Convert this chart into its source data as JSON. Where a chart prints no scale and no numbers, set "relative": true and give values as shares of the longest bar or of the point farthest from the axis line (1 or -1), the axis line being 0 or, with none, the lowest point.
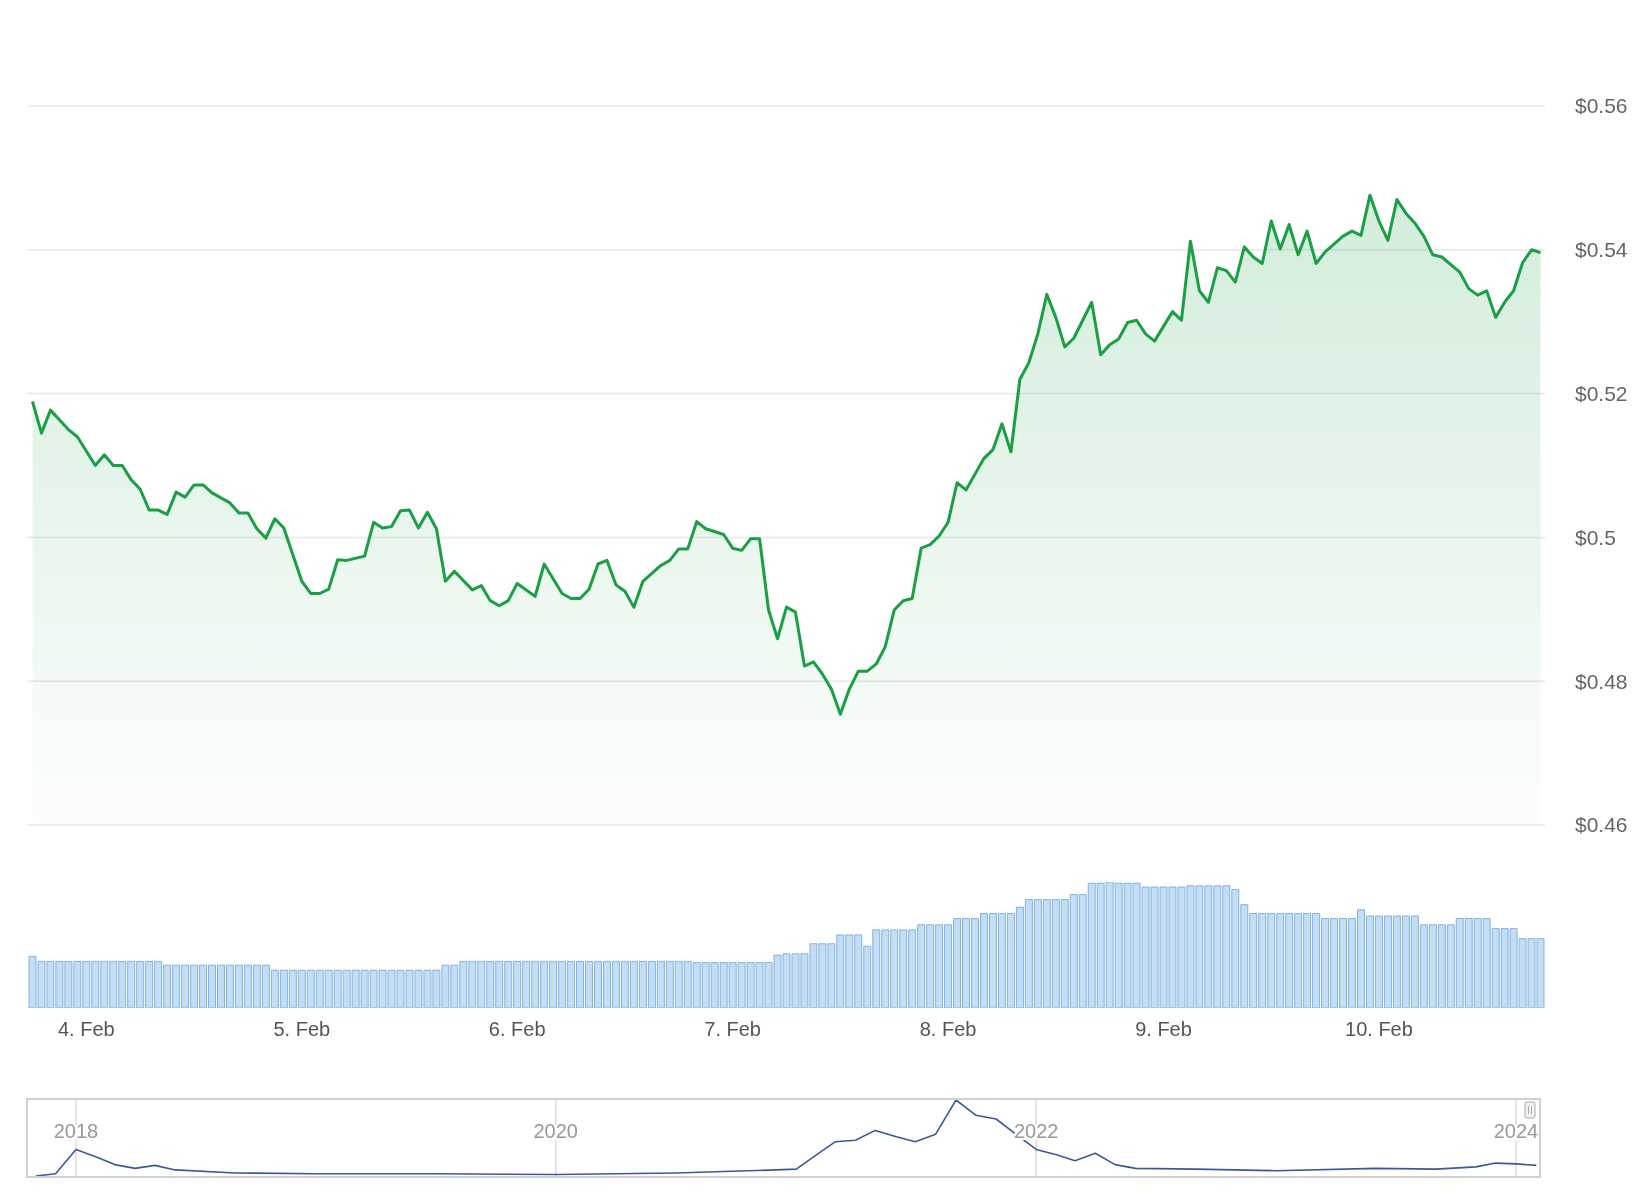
{
  "chart_data": [
    {
      "type": "area",
      "color": "#1a9f45",
      "marker": "none",
      "grid": "y",
      "tick_labels": "y",
      "xlim": [
        "--02-03T17:30",
        "--02-10T18:30"
      ],
      "ylim": [
        0.46,
        0.56
      ],
      "yticks": [
        {
          "value": 0.46,
          "label": "$0.46"
        },
        {
          "value": 0.48,
          "label": "$0.48"
        },
        {
          "value": 0.5,
          "label": "$0.5"
        },
        {
          "value": 0.52,
          "label": "$0.52"
        },
        {
          "value": 0.54,
          "label": "$0.54"
        },
        {
          "value": 0.56,
          "label": "$0.56"
        }
      ],
      "x": [
        "--02-03T18:00",
        "--02-03T19:00",
        "--02-03T20:00",
        "--02-03T22:00",
        "--02-03T23:00",
        "--02-04T01:00",
        "--02-04T02:00",
        "--02-04T03:00",
        "--02-04T04:00",
        "--02-04T05:00",
        "--02-04T06:00",
        "--02-04T07:00",
        "--02-04T08:00",
        "--02-04T09:00",
        "--02-04T10:00",
        "--02-04T11:00",
        "--02-04T12:00",
        "--02-04T13:00",
        "--02-04T14:00",
        "--02-04T16:00",
        "--02-04T17:00",
        "--02-04T18:00",
        "--02-04T19:00",
        "--02-04T20:00",
        "--02-04T21:00",
        "--02-04T22:00",
        "--02-05T00:00",
        "--02-05T01:00",
        "--02-05T02:00",
        "--02-05T03:00",
        "--02-05T04:00",
        "--02-05T05:00",
        "--02-05T07:00",
        "--02-05T08:00",
        "--02-05T09:00",
        "--02-05T10:00",
        "--02-05T11:00",
        "--02-05T12:00",
        "--02-05T13:00",
        "--02-05T14:00",
        "--02-05T15:00",
        "--02-05T16:00",
        "--02-05T17:00",
        "--02-05T19:00",
        "--02-05T20:00",
        "--02-05T21:00",
        "--02-05T22:00",
        "--02-05T23:00",
        "--02-06T00:00",
        "--02-06T02:00",
        "--02-06T03:00",
        "--02-06T05:00",
        "--02-06T06:00",
        "--02-06T07:00",
        "--02-06T08:00",
        "--02-06T09:00",
        "--02-06T10:00",
        "--02-06T11:00",
        "--02-06T12:00",
        "--02-06T13:00",
        "--02-06T14:00",
        "--02-06T15:00",
        "--02-06T16:00",
        "--02-06T17:00",
        "--02-06T18:00",
        "--02-06T19:00",
        "--02-06T20:00",
        "--02-06T21:00",
        "--02-06T23:00",
        "--02-07T00:00",
        "--02-07T01:00",
        "--02-07T02:00",
        "--02-07T03:00",
        "--02-07T04:00",
        "--02-07T05:00",
        "--02-07T06:00",
        "--02-07T07:00",
        "--02-07T08:00",
        "--02-07T09:00",
        "--02-07T10:00",
        "--02-07T11:00",
        "--02-07T12:00",
        "--02-07T13:00",
        "--02-07T14:00",
        "--02-07T15:00",
        "--02-07T16:00",
        "--02-07T17:00",
        "--02-07T18:00",
        "--02-07T19:00",
        "--02-07T20:00",
        "--02-07T21:00",
        "--02-07T22:00",
        "--02-07T23:00",
        "--02-08T00:00",
        "--02-08T01:00",
        "--02-08T02:00",
        "--02-08T03:00",
        "--02-08T04:00",
        "--02-08T05:00",
        "--02-08T06:00",
        "--02-08T07:00",
        "--02-08T08:00",
        "--02-08T09:00",
        "--02-08T10:00",
        "--02-08T11:00",
        "--02-08T12:00",
        "--02-08T13:00",
        "--02-08T14:00",
        "--02-08T15:00",
        "--02-08T16:00",
        "--02-08T17:00",
        "--02-08T18:00",
        "--02-08T19:00",
        "--02-08T20:00",
        "--02-08T21:00",
        "--02-08T22:00",
        "--02-08T23:00",
        "--02-09T01:00",
        "--02-09T02:00",
        "--02-09T03:00",
        "--02-09T04:00",
        "--02-09T05:00",
        "--02-09T06:00",
        "--02-09T07:00",
        "--02-09T08:00",
        "--02-09T09:00",
        "--02-09T10:00",
        "--02-09T11:00",
        "--02-09T12:00",
        "--02-09T13:00",
        "--02-09T14:00",
        "--02-09T15:00",
        "--02-09T16:00",
        "--02-09T17:00",
        "--02-09T18:00",
        "--02-09T20:00",
        "--02-09T21:00",
        "--02-09T22:00",
        "--02-09T23:00",
        "--02-10T00:00",
        "--02-10T01:00",
        "--02-10T02:00",
        "--02-10T03:00",
        "--02-10T04:00",
        "--02-10T05:00",
        "--02-10T06:00",
        "--02-10T07:00",
        "--02-10T09:00",
        "--02-10T10:00",
        "--02-10T11:00",
        "--02-10T12:00",
        "--02-10T13:00",
        "--02-10T14:00",
        "--02-10T15:00",
        "--02-10T16:00",
        "--02-10T17:00",
        "--02-10T18:00"
      ],
      "values": [
        0.5189,
        0.5145,
        0.5177,
        0.515,
        0.514,
        0.51,
        0.5115,
        0.51,
        0.51,
        0.508,
        0.5067,
        0.5038,
        0.5038,
        0.5032,
        0.5063,
        0.5056,
        0.5073,
        0.5073,
        0.5062,
        0.5048,
        0.5034,
        0.5034,
        0.5012,
        0.4999,
        0.5026,
        0.5013,
        0.4939,
        0.4922,
        0.4922,
        0.4928,
        0.4969,
        0.4968,
        0.4974,
        0.5021,
        0.5013,
        0.5015,
        0.5037,
        0.5038,
        0.5013,
        0.5035,
        0.5012,
        0.4939,
        0.4953,
        0.4927,
        0.4933,
        0.4912,
        0.4905,
        0.4912,
        0.4936,
        0.4918,
        0.4963,
        0.4922,
        0.4915,
        0.4915,
        0.4928,
        0.4963,
        0.4968,
        0.4934,
        0.4925,
        0.4903,
        0.4939,
        0.495,
        0.4961,
        0.4968,
        0.4984,
        0.4984,
        0.5022,
        0.5012,
        0.5004,
        0.4985,
        0.4982,
        0.4998,
        0.4998,
        0.4899,
        0.4859,
        0.4903,
        0.4896,
        0.4821,
        0.4827,
        0.481,
        0.4789,
        0.4754,
        0.4789,
        0.4814,
        0.4814,
        0.4824,
        0.4848,
        0.4899,
        0.4912,
        0.4915,
        0.4985,
        0.499,
        0.5002,
        0.5021,
        0.5076,
        0.5066,
        0.5088,
        0.511,
        0.5122,
        0.5158,
        0.5119,
        0.522,
        0.5243,
        0.5283,
        0.5338,
        0.5306,
        0.5265,
        0.5277,
        0.5302,
        0.5327,
        0.5254,
        0.5268,
        0.5276,
        0.5299,
        0.5302,
        0.5283,
        0.5273,
        0.5314,
        0.5302,
        0.5412,
        0.5343,
        0.5327,
        0.5375,
        0.5371,
        0.5355,
        0.5404,
        0.539,
        0.5381,
        0.544,
        0.5401,
        0.5435,
        0.5393,
        0.5426,
        0.5381,
        0.5397,
        0.5419,
        0.5426,
        0.542,
        0.5476,
        0.544,
        0.5413,
        0.547,
        0.5451,
        0.5437,
        0.5419,
        0.5393,
        0.539,
        0.5369,
        0.5346,
        0.5337,
        0.5343,
        0.5306,
        0.5327,
        0.5343,
        0.5382,
        0.54,
        0.5396
      ]
    },
    {
      "type": "bar",
      "color": "#7fb3e3",
      "relative": true,
      "xlim": [
        "--02-03T17:30",
        "--02-10T18:30"
      ],
      "xticks": [
        {
          "value": "--02-04",
          "label": "4. Feb"
        },
        {
          "value": "--02-05",
          "label": "5. Feb"
        },
        {
          "value": "--02-06",
          "label": "6. Feb"
        },
        {
          "value": "--02-07",
          "label": "7. Feb"
        },
        {
          "value": "--02-08",
          "label": "8. Feb"
        },
        {
          "value": "--02-09",
          "label": "9. Feb"
        },
        {
          "value": "--02-10",
          "label": "10. Feb"
        }
      ],
      "x": [
        "--02-03T18:00",
        "--02-03T19:00",
        "--02-03T20:00",
        "--02-03T21:00",
        "--02-03T22:00",
        "--02-03T23:00",
        "--02-04T00:00",
        "--02-04T01:00",
        "--02-04T02:00",
        "--02-04T03:00",
        "--02-04T04:00",
        "--02-04T05:00",
        "--02-04T06:00",
        "--02-04T07:00",
        "--02-04T08:00",
        "--02-04T09:00",
        "--02-04T10:00",
        "--02-04T11:00",
        "--02-04T12:00",
        "--02-04T13:00",
        "--02-04T14:00",
        "--02-04T15:00",
        "--02-04T16:00",
        "--02-04T17:00",
        "--02-04T18:00",
        "--02-04T19:00",
        "--02-04T20:00",
        "--02-04T21:00",
        "--02-04T22:00",
        "--02-04T23:00",
        "--02-05T00:00",
        "--02-05T01:00",
        "--02-05T02:00",
        "--02-05T03:00",
        "--02-05T04:00",
        "--02-05T05:00",
        "--02-05T06:00",
        "--02-05T07:00",
        "--02-05T08:00",
        "--02-05T09:00",
        "--02-05T10:00",
        "--02-05T11:00",
        "--02-05T12:00",
        "--02-05T13:00",
        "--02-05T14:00",
        "--02-05T15:00",
        "--02-05T16:00",
        "--02-05T17:00",
        "--02-05T18:00",
        "--02-05T19:00",
        "--02-05T20:00",
        "--02-05T21:00",
        "--02-05T22:00",
        "--02-05T23:00",
        "--02-06T00:00",
        "--02-06T01:00",
        "--02-06T02:00",
        "--02-06T03:00",
        "--02-06T04:00",
        "--02-06T05:00",
        "--02-06T06:00",
        "--02-06T07:00",
        "--02-06T08:00",
        "--02-06T09:00",
        "--02-06T10:00",
        "--02-06T11:00",
        "--02-06T12:00",
        "--02-06T13:00",
        "--02-06T14:00",
        "--02-06T15:00",
        "--02-06T16:00",
        "--02-06T17:00",
        "--02-06T18:00",
        "--02-06T19:00",
        "--02-06T20:00",
        "--02-06T21:00",
        "--02-06T22:00",
        "--02-06T23:00",
        "--02-07T00:00",
        "--02-07T01:00",
        "--02-07T02:00",
        "--02-07T03:00",
        "--02-07T04:00",
        "--02-07T05:00",
        "--02-07T06:00",
        "--02-07T07:00",
        "--02-07T08:00",
        "--02-07T09:00",
        "--02-07T10:00",
        "--02-07T11:00",
        "--02-07T12:00",
        "--02-07T13:00",
        "--02-07T14:00",
        "--02-07T15:00",
        "--02-07T16:00",
        "--02-07T17:00",
        "--02-07T18:00",
        "--02-07T19:00",
        "--02-07T20:00",
        "--02-07T21:00",
        "--02-07T22:00",
        "--02-07T23:00",
        "--02-08T00:00",
        "--02-08T01:00",
        "--02-08T02:00",
        "--02-08T03:00",
        "--02-08T04:00",
        "--02-08T05:00",
        "--02-08T06:00",
        "--02-08T07:00",
        "--02-08T08:00",
        "--02-08T09:00",
        "--02-08T10:00",
        "--02-08T11:00",
        "--02-08T12:00",
        "--02-08T13:00",
        "--02-08T14:00",
        "--02-08T15:00",
        "--02-08T16:00",
        "--02-08T17:00",
        "--02-08T18:00",
        "--02-08T19:00",
        "--02-08T20:00",
        "--02-08T21:00",
        "--02-08T22:00",
        "--02-08T23:00",
        "--02-09T00:00",
        "--02-09T01:00",
        "--02-09T02:00",
        "--02-09T03:00",
        "--02-09T04:00",
        "--02-09T05:00",
        "--02-09T06:00",
        "--02-09T07:00",
        "--02-09T08:00",
        "--02-09T09:00",
        "--02-09T10:00",
        "--02-09T11:00",
        "--02-09T12:00",
        "--02-09T13:00",
        "--02-09T14:00",
        "--02-09T15:00",
        "--02-09T16:00",
        "--02-09T17:00",
        "--02-09T18:00",
        "--02-09T19:00",
        "--02-09T20:00",
        "--02-09T21:00",
        "--02-09T22:00",
        "--02-09T23:00",
        "--02-10T00:00",
        "--02-10T01:00",
        "--02-10T02:00",
        "--02-10T03:00",
        "--02-10T04:00",
        "--02-10T05:00",
        "--02-10T06:00",
        "--02-10T07:00",
        "--02-10T08:00",
        "--02-10T09:00",
        "--02-10T10:00",
        "--02-10T11:00",
        "--02-10T12:00",
        "--02-10T13:00",
        "--02-10T14:00",
        "--02-10T15:00",
        "--02-10T16:00",
        "--02-10T17:00",
        "--02-10T18:00"
      ],
      "values": [
        0.41,
        0.37,
        0.37,
        0.37,
        0.37,
        0.37,
        0.37,
        0.37,
        0.37,
        0.37,
        0.37,
        0.37,
        0.37,
        0.37,
        0.37,
        0.34,
        0.34,
        0.34,
        0.34,
        0.34,
        0.34,
        0.34,
        0.34,
        0.34,
        0.34,
        0.34,
        0.34,
        0.3,
        0.3,
        0.3,
        0.3,
        0.3,
        0.3,
        0.3,
        0.3,
        0.3,
        0.3,
        0.3,
        0.3,
        0.3,
        0.3,
        0.3,
        0.3,
        0.3,
        0.3,
        0.3,
        0.34,
        0.34,
        0.37,
        0.37,
        0.37,
        0.37,
        0.37,
        0.37,
        0.37,
        0.37,
        0.37,
        0.37,
        0.37,
        0.37,
        0.37,
        0.37,
        0.37,
        0.37,
        0.37,
        0.37,
        0.37,
        0.37,
        0.37,
        0.37,
        0.37,
        0.37,
        0.37,
        0.37,
        0.36,
        0.36,
        0.36,
        0.36,
        0.36,
        0.36,
        0.36,
        0.36,
        0.36,
        0.42,
        0.43,
        0.43,
        0.43,
        0.51,
        0.51,
        0.51,
        0.58,
        0.58,
        0.58,
        0.49,
        0.62,
        0.62,
        0.62,
        0.62,
        0.62,
        0.66,
        0.66,
        0.66,
        0.66,
        0.71,
        0.71,
        0.71,
        0.75,
        0.75,
        0.75,
        0.75,
        0.8,
        0.86,
        0.86,
        0.86,
        0.86,
        0.86,
        0.9,
        0.9,
        0.99,
        0.99,
        1,
        0.99,
        0.99,
        0.99,
        0.96,
        0.96,
        0.96,
        0.96,
        0.96,
        0.97,
        0.97,
        0.97,
        0.97,
        0.97,
        0.94,
        0.82,
        0.75,
        0.75,
        0.75,
        0.75,
        0.75,
        0.75,
        0.75,
        0.75,
        0.71,
        0.71,
        0.71,
        0.71,
        0.78,
        0.73,
        0.73,
        0.73,
        0.73,
        0.73,
        0.73,
        0.66,
        0.66,
        0.66,
        0.66,
        0.71,
        0.71,
        0.71,
        0.71,
        0.63,
        0.63,
        0.63,
        0.55,
        0.55,
        0.55
      ]
    },
    {
      "type": "line",
      "color": "#3b5998",
      "relative": true,
      "marker": "none",
      "grid": "x",
      "xlim": [
        "2017-10-20",
        "2024-02-05"
      ],
      "xticks": [
        "2018",
        "2020",
        "2022",
        "2024"
      ],
      "x": [
        "2017-11",
        "2017-12",
        "2018-01",
        "2018-02",
        "2018-03",
        "2018-04",
        "2018-05",
        "2018-06",
        "2018-09",
        "2019-01",
        "2019-07",
        "2020-01",
        "2020-07",
        "2020-12",
        "2021-01",
        "2021-02",
        "2021-03",
        "2021-04",
        "2021-05",
        "2021-06",
        "2021-07",
        "2021-08",
        "2021-09",
        "2021-10",
        "2021-11",
        "2021-12",
        "2022-01",
        "2022-02",
        "2022-03",
        "2022-04",
        "2022-05",
        "2022-06",
        "2022-09",
        "2023-01",
        "2023-06",
        "2023-09",
        "2023-11",
        "2023-12",
        "2024-01",
        "2024-02"
      ],
      "values": [
        0,
        0.03,
        0.35,
        0.25,
        0.15,
        0.1,
        0.14,
        0.08,
        0.04,
        0.03,
        0.03,
        0.02,
        0.04,
        0.08,
        0.09,
        0.28,
        0.45,
        0.47,
        0.6,
        0.52,
        0.45,
        0.55,
        1,
        0.8,
        0.75,
        0.55,
        0.35,
        0.28,
        0.2,
        0.3,
        0.15,
        0.1,
        0.09,
        0.07,
        0.1,
        0.09,
        0.12,
        0.17,
        0.16,
        0.14
      ]
    }
  ]
}
